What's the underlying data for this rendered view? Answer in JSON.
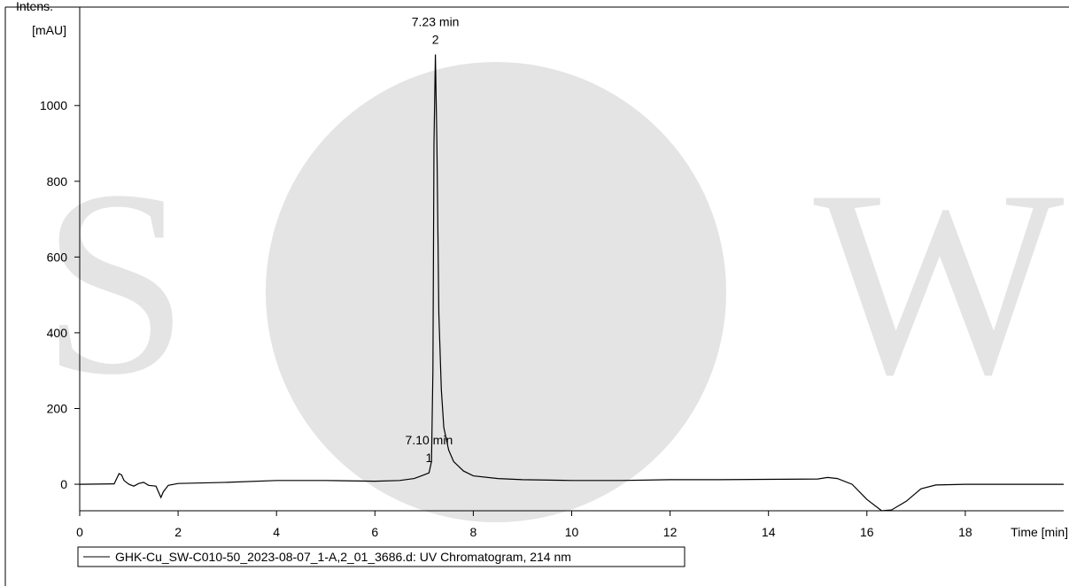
{
  "chart_data": {
    "type": "line",
    "y_label": [
      "Intens.",
      "[mAU]"
    ],
    "x_label": "Time [min]",
    "watermark": [
      "S",
      "W"
    ],
    "xlim": [
      0,
      20
    ],
    "ylim": [
      -70,
      1260
    ],
    "xticks": [
      0,
      2,
      4,
      6,
      8,
      10,
      12,
      14,
      16,
      18
    ],
    "yticks": [
      0,
      200,
      400,
      600,
      800,
      1000
    ],
    "series": [
      {
        "name": "GHK-Cu_SW-C010-50_2023-08-07_1-A,2_01_3686.d: UV Chromatogram, 214 nm",
        "color": "#000000",
        "x": [
          0,
          0.7,
          0.8,
          0.85,
          0.9,
          1.0,
          1.1,
          1.2,
          1.3,
          1.4,
          1.55,
          1.65,
          1.7,
          1.8,
          2.0,
          3.0,
          4.0,
          5.0,
          6.0,
          6.5,
          6.8,
          7.0,
          7.1,
          7.15,
          7.18,
          7.2,
          7.23,
          7.26,
          7.3,
          7.35,
          7.4,
          7.5,
          7.6,
          7.8,
          8.0,
          8.5,
          9.0,
          10,
          11,
          12,
          13,
          14,
          15,
          15.2,
          15.4,
          15.7,
          16.0,
          16.3,
          16.5,
          16.8,
          17.1,
          17.4,
          18,
          20
        ],
        "values": [
          0,
          1,
          28,
          25,
          10,
          0,
          -5,
          2,
          5,
          -3,
          -5,
          -35,
          -20,
          -3,
          2,
          5,
          10,
          10,
          8,
          10,
          15,
          25,
          30,
          60,
          300,
          900,
          1135,
          900,
          450,
          250,
          150,
          90,
          60,
          35,
          22,
          15,
          12,
          10,
          10,
          12,
          12,
          13,
          14,
          18,
          15,
          0,
          -40,
          -70,
          -68,
          -45,
          -12,
          -2,
          0,
          0
        ]
      }
    ],
    "annotations": [
      {
        "text": "7.23 min",
        "label": "2",
        "x": 7.23,
        "y": 1135
      },
      {
        "text": "7.10 min",
        "label": "1",
        "x": 7.1,
        "y": 30
      }
    ]
  }
}
